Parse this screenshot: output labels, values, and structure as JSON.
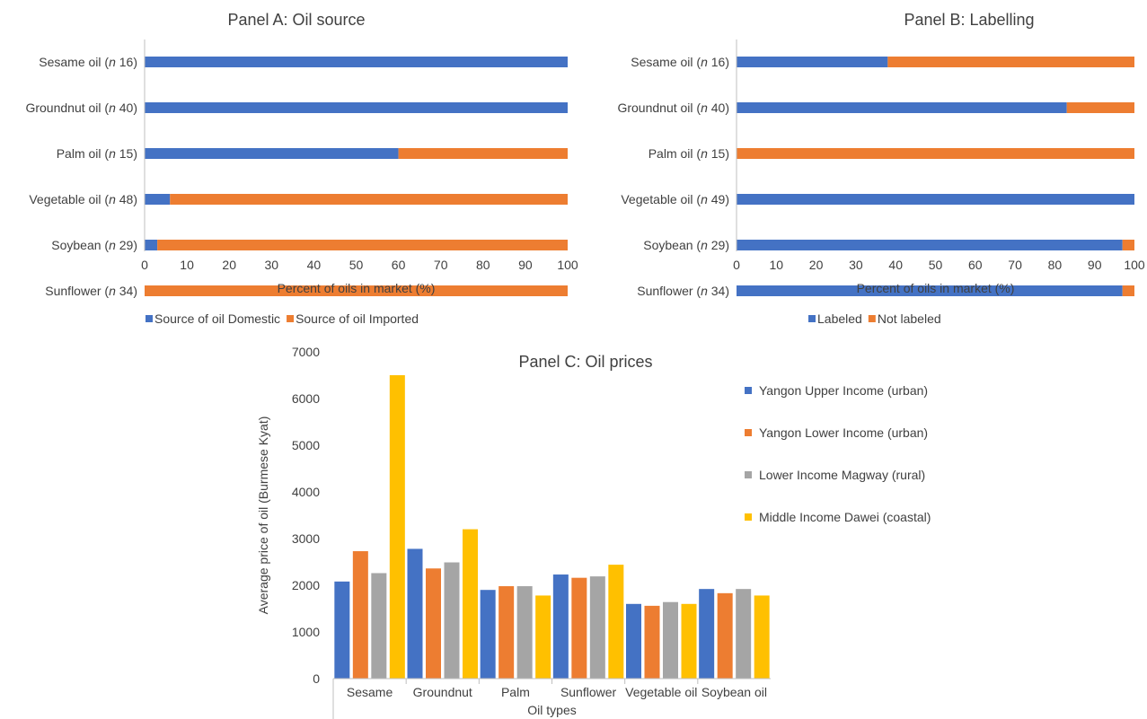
{
  "colors": {
    "blue": "#4472c4",
    "orange": "#ed7d31",
    "gray": "#a5a5a5",
    "gold": "#ffc000"
  },
  "chart_data": [
    {
      "type": "bar",
      "orientation": "horizontal",
      "stacked": true,
      "title": "Panel A: Oil source",
      "categories": [
        [
          "Sesame oil (",
          "n",
          " 16)"
        ],
        [
          "Groundnut oil (",
          "n",
          " 40)"
        ],
        [
          "Palm oil (",
          "n",
          " 15)"
        ],
        [
          "Vegetable oil (",
          "n",
          " 48)"
        ],
        [
          "Soybean (",
          "n",
          " 29)"
        ],
        [
          "Sunflower (",
          "n",
          " 34)"
        ]
      ],
      "series": [
        {
          "name": "Source of oil Domestic",
          "values": [
            100,
            100,
            60,
            6,
            3,
            0
          ]
        },
        {
          "name": "Source of oil Imported",
          "values": [
            0,
            0,
            40,
            94,
            97,
            100
          ]
        }
      ],
      "xlabel": "Percent of oils in market (%)",
      "xlim": [
        0,
        100
      ],
      "xticks": [
        "0",
        "10",
        "20",
        "30",
        "40",
        "50",
        "60",
        "70",
        "80",
        "90",
        "100"
      ],
      "legend": "bottom"
    },
    {
      "type": "bar",
      "orientation": "horizontal",
      "stacked": true,
      "title": "Panel B: Labelling",
      "categories": [
        [
          "Sesame oil (",
          "n",
          " 16)"
        ],
        [
          "Groundnut oil (",
          "n",
          " 40)"
        ],
        [
          "Palm oil (",
          "n",
          " 15)"
        ],
        [
          "Vegetable oil (",
          "n",
          " 49)"
        ],
        [
          "Soybean (",
          "n",
          " 29)"
        ],
        [
          "Sunflower (",
          "n",
          " 34)"
        ]
      ],
      "series": [
        {
          "name": "Labeled",
          "values": [
            38,
            83,
            0,
            100,
            97,
            97
          ]
        },
        {
          "name": "Not labeled",
          "values": [
            62,
            17,
            100,
            0,
            3,
            3
          ]
        }
      ],
      "xlabel": "Percent of oils in market (%)",
      "xlim": [
        0,
        100
      ],
      "xticks": [
        "0",
        "10",
        "20",
        "30",
        "40",
        "50",
        "60",
        "70",
        "80",
        "90",
        "100"
      ],
      "legend": "bottom"
    },
    {
      "type": "bar",
      "title": "Panel C: Oil prices",
      "categories": [
        "Sesame",
        "Groundnut",
        "Palm",
        "Sunflower",
        "Vegetable oil",
        "Soybean oil"
      ],
      "series": [
        {
          "name": "Yangon Upper Income (urban)",
          "values": [
            2080,
            2780,
            1900,
            2230,
            1600,
            1920
          ]
        },
        {
          "name": "Yangon Lower Income (urban)",
          "values": [
            2730,
            2360,
            1980,
            2160,
            1560,
            1830
          ]
        },
        {
          "name": "Lower Income Magway (rural)",
          "values": [
            2260,
            2490,
            1980,
            2190,
            1640,
            1920
          ]
        },
        {
          "name": "Middle Income Dawei (coastal)",
          "values": [
            6500,
            3200,
            1780,
            2440,
            1600,
            1780
          ]
        }
      ],
      "xlabel": "Oil types",
      "ylabel": "Average price of oil (Burmese Kyat)",
      "ylim": [
        0,
        7000
      ],
      "yticks": [
        "0",
        "1000",
        "2000",
        "3000",
        "4000",
        "5000",
        "6000",
        "7000"
      ],
      "legend": "right"
    }
  ]
}
